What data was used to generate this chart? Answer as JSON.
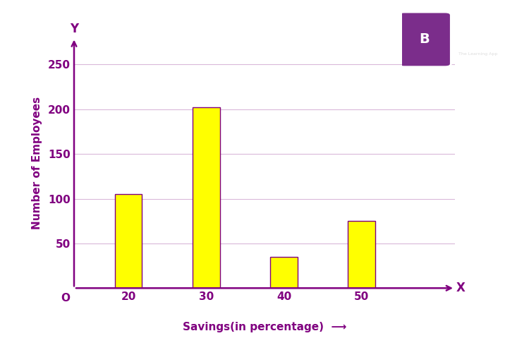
{
  "categories": [
    20,
    30,
    40,
    50
  ],
  "values": [
    105,
    202,
    35,
    75
  ],
  "bar_color": "#FFFF00",
  "bar_edge_color": "#800080",
  "bar_width": 3.5,
  "ylabel": "Number of Employees",
  "xlabel": "Savings(in percentage)",
  "yticks": [
    50,
    100,
    150,
    200,
    250
  ],
  "ylim": [
    0,
    280
  ],
  "xlim_left": 13,
  "xlim_right": 62,
  "axis_color": "#800080",
  "label_color": "#800080",
  "grid_color": "#dab8da",
  "background_color": "#ffffff",
  "origin_label": "O",
  "x_axis_label": "X",
  "y_axis_label": "Y",
  "tick_fontsize": 11,
  "ylabel_fontsize": 11,
  "xlabel_fontsize": 11
}
